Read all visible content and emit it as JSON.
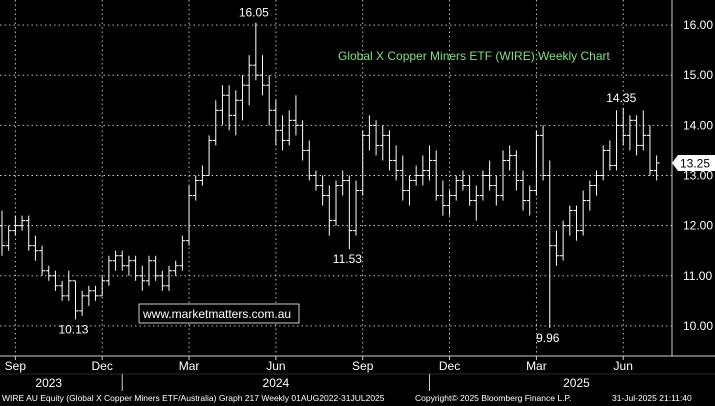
{
  "chart_data": {
    "type": "ohlc",
    "title": "Global X Copper Miners ETF (WIRE) Weekly Chart",
    "watermark": "www.marketmatters.com.au",
    "ylim": [
      9.4,
      16.5
    ],
    "y_ticks": [
      "10.00",
      "11.00",
      "12.00",
      "13.00",
      "14.00",
      "15.00",
      "16.00"
    ],
    "y_tick_values": [
      10,
      11,
      12,
      13,
      14,
      15,
      16
    ],
    "last_price_label": "13.25",
    "last_price": 13.25,
    "x_month_labels": [
      "Sep",
      "Dec",
      "Mar",
      "Jun",
      "Sep",
      "Dec",
      "Mar",
      "Jun"
    ],
    "x_month_index": [
      2,
      15,
      28,
      41,
      54,
      67,
      80,
      93
    ],
    "x_year_labels": [
      "2023",
      "2024",
      "2025"
    ],
    "x_year_index": [
      7,
      41,
      86
    ],
    "x_year_dividers": [
      18,
      64
    ],
    "annotations": [
      {
        "text": "16.05",
        "index": 38,
        "value": 16.05
      },
      {
        "text": "10.13",
        "index": 11,
        "value": 10.13
      },
      {
        "text": "11.53",
        "index": 52,
        "value": 11.53
      },
      {
        "text": "9.96",
        "index": 82,
        "value": 9.96
      },
      {
        "text": "14.35",
        "index": 93,
        "value": 14.35
      }
    ],
    "series": [
      {
        "weeks": 99,
        "ohlc": [
          [
            12.0,
            12.3,
            11.4,
            11.6
          ],
          [
            11.6,
            12.0,
            11.5,
            11.9
          ],
          [
            11.9,
            12.2,
            11.8,
            12.0
          ],
          [
            12.0,
            12.2,
            11.9,
            12.1
          ],
          [
            12.1,
            12.2,
            11.5,
            11.6
          ],
          [
            11.6,
            11.8,
            11.3,
            11.5
          ],
          [
            11.5,
            11.6,
            11.0,
            11.1
          ],
          [
            11.1,
            11.2,
            10.9,
            11.0
          ],
          [
            11.0,
            11.1,
            10.7,
            10.8
          ],
          [
            10.8,
            10.9,
            10.5,
            10.6
          ],
          [
            10.6,
            11.1,
            10.5,
            10.9
          ],
          [
            10.9,
            10.9,
            10.13,
            10.3
          ],
          [
            10.3,
            10.7,
            10.2,
            10.6
          ],
          [
            10.6,
            10.8,
            10.4,
            10.7
          ],
          [
            10.7,
            10.8,
            10.5,
            10.6
          ],
          [
            10.6,
            11.0,
            10.6,
            10.9
          ],
          [
            10.9,
            11.4,
            10.8,
            11.3
          ],
          [
            11.3,
            11.5,
            11.1,
            11.4
          ],
          [
            11.4,
            11.5,
            11.1,
            11.2
          ],
          [
            11.2,
            11.4,
            11.0,
            11.3
          ],
          [
            11.3,
            11.4,
            10.9,
            11.0
          ],
          [
            11.0,
            11.2,
            10.7,
            10.9
          ],
          [
            10.9,
            11.4,
            10.8,
            11.3
          ],
          [
            11.3,
            11.4,
            10.9,
            11.0
          ],
          [
            11.0,
            11.1,
            10.7,
            10.8
          ],
          [
            10.8,
            11.2,
            10.7,
            11.1
          ],
          [
            11.1,
            11.3,
            11.0,
            11.2
          ],
          [
            11.2,
            11.8,
            11.1,
            11.7
          ],
          [
            11.7,
            12.8,
            11.6,
            12.6
          ],
          [
            12.6,
            13.0,
            12.5,
            12.9
          ],
          [
            12.9,
            13.2,
            12.8,
            13.0
          ],
          [
            13.0,
            13.8,
            13.0,
            13.7
          ],
          [
            13.7,
            14.5,
            13.6,
            14.3
          ],
          [
            14.3,
            14.8,
            14.0,
            14.6
          ],
          [
            14.6,
            14.8,
            13.9,
            14.2
          ],
          [
            14.2,
            14.7,
            13.8,
            14.5
          ],
          [
            14.5,
            15.0,
            14.1,
            14.8
          ],
          [
            14.8,
            15.4,
            14.4,
            15.2
          ],
          [
            15.2,
            16.05,
            14.9,
            15.0
          ],
          [
            15.0,
            15.4,
            14.6,
            14.8
          ],
          [
            14.8,
            15.0,
            14.0,
            14.3
          ],
          [
            14.3,
            14.5,
            13.6,
            13.9
          ],
          [
            13.9,
            14.2,
            13.5,
            13.7
          ],
          [
            13.7,
            14.3,
            13.6,
            14.1
          ],
          [
            14.1,
            14.6,
            13.8,
            14.0
          ],
          [
            14.0,
            14.1,
            13.3,
            13.5
          ],
          [
            13.5,
            13.7,
            12.9,
            13.0
          ],
          [
            13.0,
            13.1,
            12.7,
            12.8
          ],
          [
            12.8,
            13.0,
            12.4,
            12.6
          ],
          [
            12.6,
            12.8,
            11.8,
            12.1
          ],
          [
            12.1,
            12.9,
            12.0,
            12.8
          ],
          [
            12.8,
            13.1,
            12.6,
            12.9
          ],
          [
            12.9,
            13.0,
            11.53,
            11.9
          ],
          [
            11.9,
            12.9,
            11.8,
            12.7
          ],
          [
            12.7,
            13.9,
            12.6,
            13.8
          ],
          [
            13.8,
            14.2,
            13.5,
            14.0
          ],
          [
            14.0,
            14.1,
            13.4,
            13.6
          ],
          [
            13.6,
            14.0,
            13.3,
            13.8
          ],
          [
            13.8,
            13.9,
            13.1,
            13.3
          ],
          [
            13.3,
            13.6,
            12.9,
            13.1
          ],
          [
            13.1,
            13.4,
            12.5,
            12.7
          ],
          [
            12.7,
            13.0,
            12.4,
            12.9
          ],
          [
            12.9,
            13.2,
            12.8,
            13.0
          ],
          [
            13.0,
            13.4,
            12.8,
            13.1
          ],
          [
            13.1,
            13.6,
            12.9,
            13.3
          ],
          [
            13.3,
            13.5,
            12.5,
            12.6
          ],
          [
            12.6,
            12.9,
            12.2,
            12.4
          ],
          [
            12.4,
            12.7,
            12.2,
            12.6
          ],
          [
            12.6,
            13.0,
            12.5,
            12.9
          ],
          [
            12.9,
            13.1,
            12.7,
            12.8
          ],
          [
            12.8,
            13.0,
            12.4,
            12.5
          ],
          [
            12.5,
            12.8,
            12.1,
            12.6
          ],
          [
            12.6,
            13.1,
            12.5,
            13.0
          ],
          [
            13.0,
            13.3,
            12.7,
            12.8
          ],
          [
            12.8,
            13.0,
            12.4,
            12.6
          ],
          [
            12.6,
            13.5,
            12.5,
            13.3
          ],
          [
            13.3,
            13.6,
            13.1,
            13.4
          ],
          [
            13.4,
            13.5,
            12.7,
            12.9
          ],
          [
            12.9,
            13.1,
            12.3,
            12.5
          ],
          [
            12.5,
            12.8,
            12.2,
            12.7
          ],
          [
            12.7,
            13.9,
            12.6,
            13.8
          ],
          [
            13.8,
            14.0,
            12.9,
            13.0
          ],
          [
            13.0,
            13.3,
            9.96,
            11.6
          ],
          [
            11.6,
            11.9,
            11.2,
            11.4
          ],
          [
            11.4,
            12.1,
            11.3,
            12.0
          ],
          [
            12.0,
            12.4,
            11.8,
            12.3
          ],
          [
            12.3,
            12.4,
            11.7,
            11.9
          ],
          [
            11.9,
            12.7,
            11.8,
            12.5
          ],
          [
            12.5,
            12.9,
            12.3,
            12.8
          ],
          [
            12.8,
            13.1,
            12.6,
            13.0
          ],
          [
            13.0,
            13.6,
            12.9,
            13.5
          ],
          [
            13.5,
            13.7,
            13.1,
            13.2
          ],
          [
            13.2,
            14.3,
            13.1,
            14.0
          ],
          [
            14.0,
            14.35,
            13.6,
            13.8
          ],
          [
            13.8,
            14.2,
            13.5,
            14.1
          ],
          [
            14.1,
            14.2,
            13.4,
            13.6
          ],
          [
            13.6,
            14.3,
            13.5,
            13.8
          ],
          [
            13.8,
            14.0,
            13.0,
            13.1
          ],
          [
            13.1,
            13.4,
            12.9,
            13.25
          ]
        ]
      }
    ]
  },
  "footer": {
    "left": "WIRE AU Equity (Global X Copper Miners ETF/Australia) Graph 217  Weekly 01AUG2022-31JUL2025",
    "middle": "Copyright© 2025 Bloomberg Finance L.P.",
    "right": "31-Jul-2025 21:11:40"
  },
  "colors": {
    "background": "#000000",
    "bars": "#ffffff",
    "grid": "#d0d0d0",
    "title": "#7fe07f",
    "watermark": "#ffffff",
    "axis_panel": "#000000"
  }
}
